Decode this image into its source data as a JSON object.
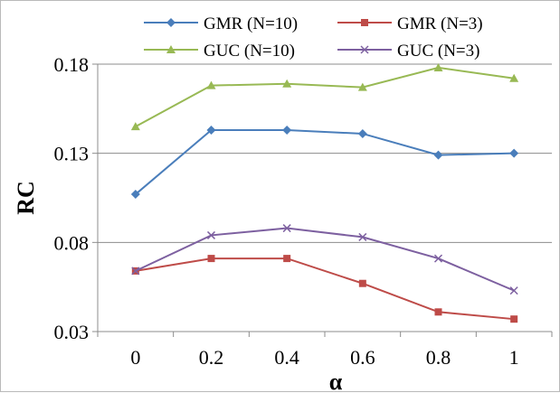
{
  "chart_data": {
    "type": "line",
    "title": "",
    "xlabel": "α",
    "ylabel": "RC",
    "categories": [
      "0",
      "0.2",
      "0.4",
      "0.6",
      "0.8",
      "1"
    ],
    "x": [
      0,
      0.2,
      0.4,
      0.6,
      0.8,
      1
    ],
    "ylim": [
      0.03,
      0.18
    ],
    "yticks": [
      0.03,
      0.08,
      0.13,
      0.18
    ],
    "ytick_labels": [
      "0.03",
      "0.08",
      "0.13",
      "0.18"
    ],
    "grid": "horizontal",
    "legend_position": "top",
    "series": [
      {
        "name": "GMR (N=10)",
        "color": "#4a7ebb",
        "marker": "diamond",
        "values": [
          0.107,
          0.143,
          0.143,
          0.141,
          0.129,
          0.13
        ]
      },
      {
        "name": "GMR (N=3)",
        "color": "#be4b48",
        "marker": "square",
        "values": [
          0.064,
          0.071,
          0.071,
          0.057,
          0.041,
          0.037
        ]
      },
      {
        "name": "GUC (N=10)",
        "color": "#98b954",
        "marker": "triangle",
        "values": [
          0.145,
          0.168,
          0.169,
          0.167,
          0.178,
          0.172
        ]
      },
      {
        "name": "GUC (N=3)",
        "color": "#7d60a0",
        "marker": "x",
        "values": [
          0.064,
          0.084,
          0.088,
          0.083,
          0.071,
          0.053
        ]
      }
    ]
  }
}
